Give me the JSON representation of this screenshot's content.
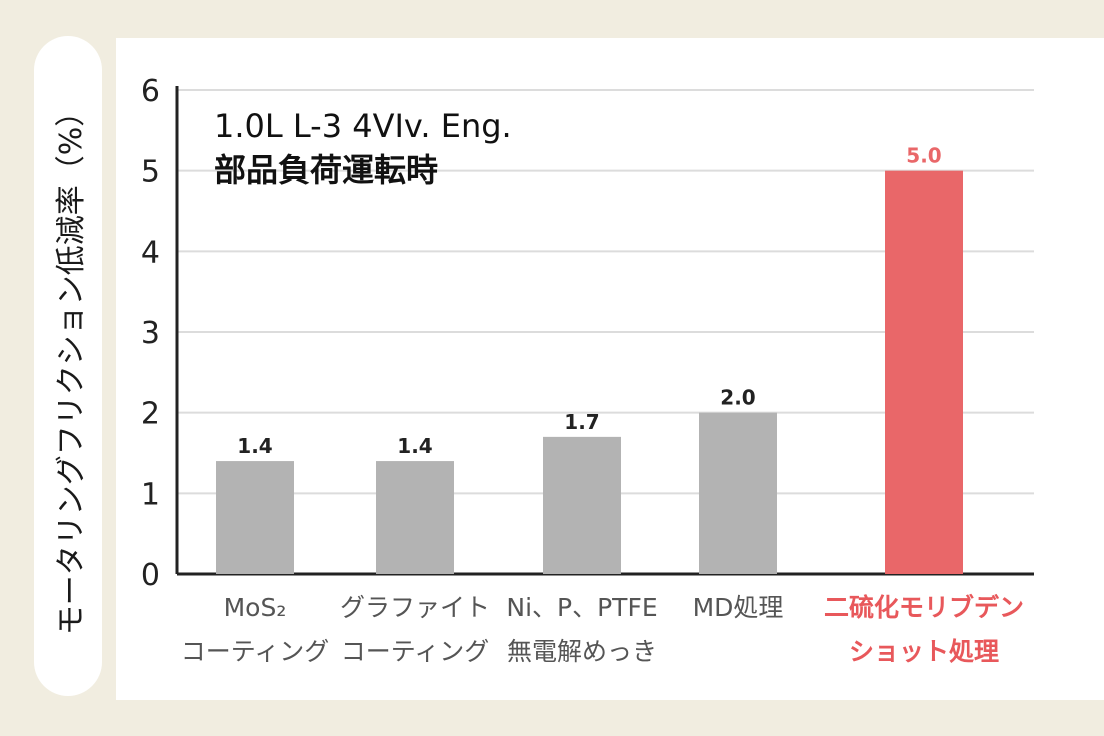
{
  "chart_data": {
    "type": "bar",
    "title": "1.0L L-3 4VIv. Eng.",
    "subtitle": "部品負荷運転時",
    "ylabel": "モータリングフリクション低減率（%）",
    "ylim": [
      0,
      6
    ],
    "yticks": [
      0,
      1,
      2,
      3,
      4,
      5,
      6
    ],
    "grid": true,
    "categories": [
      [
        "MoS₂",
        "コーティング"
      ],
      [
        "グラファイト",
        "コーティング"
      ],
      [
        "Ni、P、PTFE",
        "無電解めっき"
      ],
      [
        "MD処理"
      ],
      [
        "二硫化モリブデン",
        "ショット処理"
      ]
    ],
    "values": [
      1.4,
      1.4,
      1.7,
      2.0,
      5.0
    ],
    "value_labels": [
      "1.4",
      "1.4",
      "1.7",
      "2.0",
      "5.0"
    ],
    "colors": {
      "bar_default": "#b3b3b3",
      "bar_highlight": "#e96769",
      "label_default": "#555555",
      "label_highlight": "#e8585b",
      "value_default": "#222222",
      "value_highlight": "#e96769",
      "grid": "#dcdcdc",
      "axis": "#222222"
    },
    "highlight_index": 4
  }
}
